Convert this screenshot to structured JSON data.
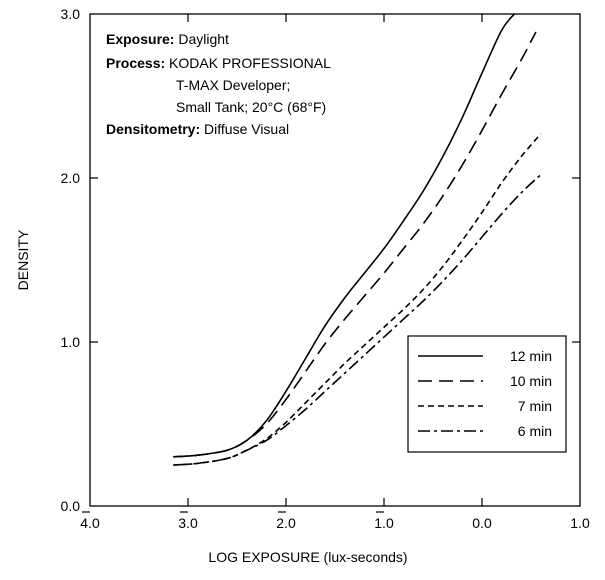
{
  "chart_data": {
    "type": "line",
    "xlabel": "LOG EXPOSURE (lux-seconds)",
    "ylabel": "DENSITY",
    "xlim": [
      -4.0,
      1.0
    ],
    "ylim": [
      0.0,
      3.0
    ],
    "x_ticks": [
      {
        "value": -4.0,
        "label": "4.0",
        "bar": true
      },
      {
        "value": -3.0,
        "label": "3.0",
        "bar": true
      },
      {
        "value": -2.0,
        "label": "2.0",
        "bar": true
      },
      {
        "value": -1.0,
        "label": "1.0",
        "bar": true
      },
      {
        "value": 0.0,
        "label": "0.0",
        "bar": false
      },
      {
        "value": 1.0,
        "label": "1.0",
        "bar": false
      }
    ],
    "y_ticks": [
      {
        "value": 0.0,
        "label": "0.0"
      },
      {
        "value": 1.0,
        "label": "1.0"
      },
      {
        "value": 2.0,
        "label": "2.0"
      },
      {
        "value": 3.0,
        "label": "3.0"
      }
    ],
    "grid": false,
    "legend_position": "bottom-right",
    "annotations": [
      {
        "label": "Exposure:",
        "text": "Daylight"
      },
      {
        "label": "Process:",
        "text": "KODAK PROFESSIONAL"
      },
      {
        "label": "",
        "text": "T-MAX Developer;"
      },
      {
        "label": "",
        "text": "Small Tank; 20°C (68°F)"
      },
      {
        "label": "Densitometry:",
        "text": "Diffuse Visual"
      }
    ],
    "series": [
      {
        "name": "12 min",
        "dash": "solid",
        "points": [
          [
            -3.15,
            0.3
          ],
          [
            -2.9,
            0.31
          ],
          [
            -2.6,
            0.34
          ],
          [
            -2.4,
            0.4
          ],
          [
            -2.2,
            0.52
          ],
          [
            -2.0,
            0.7
          ],
          [
            -1.8,
            0.9
          ],
          [
            -1.6,
            1.1
          ],
          [
            -1.4,
            1.27
          ],
          [
            -1.2,
            1.42
          ],
          [
            -1.0,
            1.57
          ],
          [
            -0.8,
            1.74
          ],
          [
            -0.6,
            1.92
          ],
          [
            -0.4,
            2.13
          ],
          [
            -0.2,
            2.37
          ],
          [
            0.0,
            2.64
          ],
          [
            0.2,
            2.9
          ],
          [
            0.33,
            3.0
          ]
        ]
      },
      {
        "name": "10 min",
        "dash": "dash",
        "points": [
          [
            -3.15,
            0.3
          ],
          [
            -2.9,
            0.31
          ],
          [
            -2.6,
            0.34
          ],
          [
            -2.4,
            0.4
          ],
          [
            -2.2,
            0.5
          ],
          [
            -2.0,
            0.65
          ],
          [
            -1.8,
            0.82
          ],
          [
            -1.6,
            0.99
          ],
          [
            -1.4,
            1.14
          ],
          [
            -1.2,
            1.28
          ],
          [
            -1.0,
            1.42
          ],
          [
            -0.8,
            1.57
          ],
          [
            -0.6,
            1.72
          ],
          [
            -0.4,
            1.89
          ],
          [
            -0.2,
            2.08
          ],
          [
            0.0,
            2.29
          ],
          [
            0.2,
            2.51
          ],
          [
            0.4,
            2.72
          ],
          [
            0.55,
            2.89
          ]
        ]
      },
      {
        "name": "7 min",
        "dash": "short-dash",
        "points": [
          [
            -3.15,
            0.25
          ],
          [
            -2.9,
            0.26
          ],
          [
            -2.6,
            0.29
          ],
          [
            -2.4,
            0.34
          ],
          [
            -2.2,
            0.41
          ],
          [
            -2.0,
            0.51
          ],
          [
            -1.8,
            0.63
          ],
          [
            -1.6,
            0.75
          ],
          [
            -1.4,
            0.87
          ],
          [
            -1.2,
            0.98
          ],
          [
            -1.0,
            1.09
          ],
          [
            -0.8,
            1.2
          ],
          [
            -0.6,
            1.32
          ],
          [
            -0.4,
            1.46
          ],
          [
            -0.2,
            1.62
          ],
          [
            0.0,
            1.79
          ],
          [
            0.2,
            1.97
          ],
          [
            0.4,
            2.13
          ],
          [
            0.6,
            2.27
          ]
        ]
      },
      {
        "name": "6 min",
        "dash": "dash-dot",
        "points": [
          [
            -3.15,
            0.25
          ],
          [
            -2.9,
            0.26
          ],
          [
            -2.6,
            0.29
          ],
          [
            -2.4,
            0.34
          ],
          [
            -2.2,
            0.4
          ],
          [
            -2.0,
            0.49
          ],
          [
            -1.8,
            0.59
          ],
          [
            -1.6,
            0.7
          ],
          [
            -1.4,
            0.81
          ],
          [
            -1.2,
            0.92
          ],
          [
            -1.0,
            1.03
          ],
          [
            -0.8,
            1.14
          ],
          [
            -0.6,
            1.25
          ],
          [
            -0.4,
            1.37
          ],
          [
            -0.2,
            1.5
          ],
          [
            0.0,
            1.64
          ],
          [
            0.2,
            1.78
          ],
          [
            0.4,
            1.91
          ],
          [
            0.6,
            2.02
          ]
        ]
      }
    ]
  }
}
